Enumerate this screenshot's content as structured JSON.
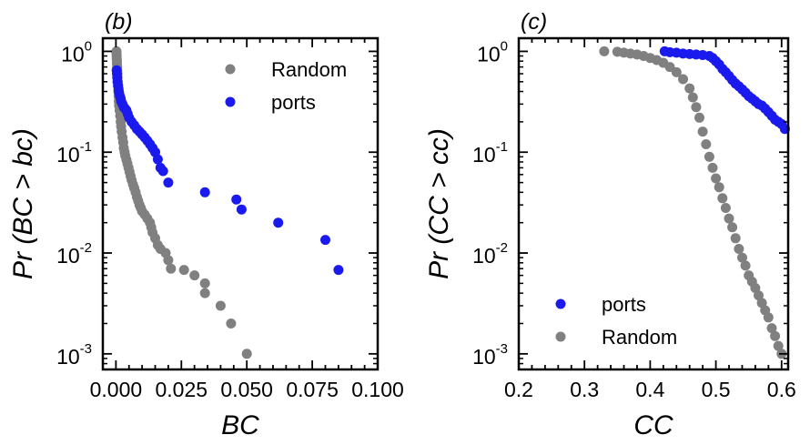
{
  "colors": {
    "random": "#808080",
    "ports": "#1a1aee"
  },
  "chart_data": [
    {
      "type": "scatter",
      "panel_label": "(b)",
      "xlabel": "BC",
      "ylabel": "Pr (BC > bc)",
      "xlim": [
        -0.005,
        0.1
      ],
      "ylim": [
        0.0007,
        1.35
      ],
      "yscale": "log",
      "xticks": [
        0.0,
        0.025,
        0.05,
        0.075,
        0.1
      ],
      "xtick_labels": [
        "0.000",
        "0.025",
        "0.050",
        "0.075",
        "0.100"
      ],
      "yticks": [
        0.001,
        0.01,
        0.1,
        1
      ],
      "ytick_labels": [
        [
          "10",
          "-3"
        ],
        [
          "10",
          "-2"
        ],
        [
          "10",
          "-1"
        ],
        [
          "10",
          "0"
        ]
      ],
      "grid": false,
      "legend": "top-right",
      "legend_order": [
        "Random",
        "ports"
      ],
      "series": [
        {
          "name": "Random",
          "color": "#808080",
          "points": [
            [
              0.0002,
              1.0
            ],
            [
              0.0002,
              0.95
            ],
            [
              0.0003,
              0.9
            ],
            [
              0.0003,
              0.85
            ],
            [
              0.0004,
              0.8
            ],
            [
              0.0004,
              0.75
            ],
            [
              0.0005,
              0.7
            ],
            [
              0.0005,
              0.65
            ],
            [
              0.0006,
              0.6
            ],
            [
              0.0006,
              0.55
            ],
            [
              0.0007,
              0.5
            ],
            [
              0.0008,
              0.45
            ],
            [
              0.0009,
              0.4
            ],
            [
              0.001,
              0.36
            ],
            [
              0.0011,
              0.32
            ],
            [
              0.0012,
              0.29
            ],
            [
              0.0014,
              0.26
            ],
            [
              0.0016,
              0.23
            ],
            [
              0.0018,
              0.2
            ],
            [
              0.002,
              0.18
            ],
            [
              0.0022,
              0.16
            ],
            [
              0.0025,
              0.14
            ],
            [
              0.0028,
              0.125
            ],
            [
              0.003,
              0.11
            ],
            [
              0.0033,
              0.1
            ],
            [
              0.0036,
              0.092
            ],
            [
              0.004,
              0.084
            ],
            [
              0.0044,
              0.077
            ],
            [
              0.0048,
              0.07
            ],
            [
              0.0052,
              0.064
            ],
            [
              0.0056,
              0.058
            ],
            [
              0.006,
              0.053
            ],
            [
              0.0065,
              0.048
            ],
            [
              0.007,
              0.044
            ],
            [
              0.0075,
              0.04
            ],
            [
              0.008,
              0.036
            ],
            [
              0.0085,
              0.033
            ],
            [
              0.009,
              0.03
            ],
            [
              0.0095,
              0.028
            ],
            [
              0.01,
              0.026
            ],
            [
              0.011,
              0.024
            ],
            [
              0.012,
              0.022
            ],
            [
              0.013,
              0.02
            ],
            [
              0.0135,
              0.018
            ],
            [
              0.014,
              0.016
            ],
            [
              0.015,
              0.014
            ],
            [
              0.016,
              0.012
            ],
            [
              0.017,
              0.011
            ],
            [
              0.019,
              0.01
            ],
            [
              0.02,
              0.0085
            ],
            [
              0.021,
              0.007
            ],
            [
              0.026,
              0.0068
            ],
            [
              0.03,
              0.006
            ],
            [
              0.034,
              0.005
            ],
            [
              0.034,
              0.004
            ],
            [
              0.04,
              0.003
            ],
            [
              0.044,
              0.002
            ],
            [
              0.05,
              0.001
            ]
          ]
        },
        {
          "name": "ports",
          "color": "#1a1aee",
          "points": [
            [
              0.0003,
              0.65
            ],
            [
              0.0004,
              0.6
            ],
            [
              0.0005,
              0.55
            ],
            [
              0.0006,
              0.5
            ],
            [
              0.0008,
              0.46
            ],
            [
              0.001,
              0.42
            ],
            [
              0.0012,
              0.39
            ],
            [
              0.0015,
              0.36
            ],
            [
              0.0018,
              0.34
            ],
            [
              0.002,
              0.32
            ],
            [
              0.0025,
              0.3
            ],
            [
              0.003,
              0.28
            ],
            [
              0.0035,
              0.27
            ],
            [
              0.004,
              0.26
            ],
            [
              0.0045,
              0.24
            ],
            [
              0.005,
              0.22
            ],
            [
              0.006,
              0.2
            ],
            [
              0.007,
              0.185
            ],
            [
              0.008,
              0.17
            ],
            [
              0.009,
              0.16
            ],
            [
              0.01,
              0.15
            ],
            [
              0.011,
              0.14
            ],
            [
              0.012,
              0.13
            ],
            [
              0.013,
              0.12
            ],
            [
              0.014,
              0.11
            ],
            [
              0.015,
              0.1
            ],
            [
              0.016,
              0.085
            ],
            [
              0.017,
              0.07
            ],
            [
              0.018,
              0.065
            ],
            [
              0.02,
              0.05
            ],
            [
              0.034,
              0.04
            ],
            [
              0.046,
              0.034
            ],
            [
              0.048,
              0.027
            ],
            [
              0.062,
              0.02
            ],
            [
              0.08,
              0.0135
            ],
            [
              0.085,
              0.0068
            ]
          ]
        }
      ]
    },
    {
      "type": "scatter",
      "panel_label": "(c)",
      "xlabel": "CC",
      "ylabel": "Pr (CC > cc)",
      "xlim": [
        0.2,
        0.61
      ],
      "ylim": [
        0.0007,
        1.35
      ],
      "yscale": "log",
      "xticks": [
        0.2,
        0.3,
        0.4,
        0.5,
        0.6
      ],
      "xtick_labels": [
        "0.2",
        "0.3",
        "0.4",
        "0.5",
        "0.6"
      ],
      "yticks": [
        0.001,
        0.01,
        0.1,
        1
      ],
      "ytick_labels": [
        [
          "10",
          "-3"
        ],
        [
          "10",
          "-2"
        ],
        [
          "10",
          "-1"
        ],
        [
          "10",
          "0"
        ]
      ],
      "grid": false,
      "legend": "bottom-left",
      "legend_order": [
        "ports",
        "Random"
      ],
      "series": [
        {
          "name": "ports",
          "color": "#1a1aee",
          "points": [
            [
              0.422,
              1.0
            ],
            [
              0.43,
              0.98
            ],
            [
              0.44,
              0.97
            ],
            [
              0.45,
              0.95
            ],
            [
              0.46,
              0.94
            ],
            [
              0.47,
              0.93
            ],
            [
              0.48,
              0.92
            ],
            [
              0.49,
              0.9
            ],
            [
              0.495,
              0.86
            ],
            [
              0.5,
              0.8
            ],
            [
              0.505,
              0.74
            ],
            [
              0.51,
              0.67
            ],
            [
              0.515,
              0.62
            ],
            [
              0.52,
              0.57
            ],
            [
              0.525,
              0.52
            ],
            [
              0.53,
              0.48
            ],
            [
              0.535,
              0.45
            ],
            [
              0.54,
              0.42
            ],
            [
              0.545,
              0.39
            ],
            [
              0.55,
              0.36
            ],
            [
              0.555,
              0.34
            ],
            [
              0.56,
              0.32
            ],
            [
              0.565,
              0.3
            ],
            [
              0.57,
              0.29
            ],
            [
              0.575,
              0.27
            ],
            [
              0.58,
              0.25
            ],
            [
              0.585,
              0.23
            ],
            [
              0.59,
              0.21
            ],
            [
              0.595,
              0.2
            ],
            [
              0.6,
              0.19
            ],
            [
              0.605,
              0.17
            ]
          ]
        },
        {
          "name": "Random",
          "color": "#808080",
          "points": [
            [
              0.33,
              1.0
            ],
            [
              0.35,
              0.99
            ],
            [
              0.36,
              0.97
            ],
            [
              0.37,
              0.95
            ],
            [
              0.38,
              0.93
            ],
            [
              0.39,
              0.9
            ],
            [
              0.4,
              0.86
            ],
            [
              0.41,
              0.82
            ],
            [
              0.42,
              0.77
            ],
            [
              0.43,
              0.7
            ],
            [
              0.44,
              0.62
            ],
            [
              0.45,
              0.53
            ],
            [
              0.46,
              0.43
            ],
            [
              0.465,
              0.35
            ],
            [
              0.47,
              0.28
            ],
            [
              0.475,
              0.22
            ],
            [
              0.48,
              0.16
            ],
            [
              0.485,
              0.12
            ],
            [
              0.49,
              0.09
            ],
            [
              0.495,
              0.07
            ],
            [
              0.5,
              0.055
            ],
            [
              0.505,
              0.045
            ],
            [
              0.51,
              0.035
            ],
            [
              0.515,
              0.028
            ],
            [
              0.52,
              0.022
            ],
            [
              0.525,
              0.018
            ],
            [
              0.53,
              0.014
            ],
            [
              0.535,
              0.011
            ],
            [
              0.54,
              0.009
            ],
            [
              0.545,
              0.0075
            ],
            [
              0.55,
              0.006
            ],
            [
              0.555,
              0.0052
            ],
            [
              0.56,
              0.0045
            ],
            [
              0.565,
              0.0038
            ],
            [
              0.57,
              0.0032
            ],
            [
              0.575,
              0.0027
            ],
            [
              0.58,
              0.0023
            ],
            [
              0.585,
              0.0018
            ],
            [
              0.59,
              0.0015
            ],
            [
              0.595,
              0.0012
            ],
            [
              0.6,
              0.001
            ]
          ]
        }
      ]
    }
  ]
}
